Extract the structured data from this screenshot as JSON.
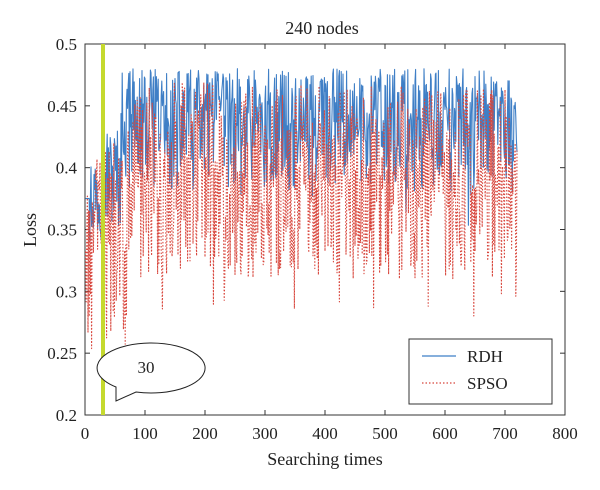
{
  "chart_data": {
    "type": "line",
    "title": "240 nodes",
    "xlabel": "Searching times",
    "ylabel": "Loss",
    "xlim": [
      0,
      800
    ],
    "ylim": [
      0.2,
      0.5
    ],
    "xticks": [
      "0",
      "100",
      "200",
      "300",
      "400",
      "500",
      "600",
      "700",
      "800"
    ],
    "yticks": [
      "0.2",
      "0.25",
      "0.3",
      "0.35",
      "0.4",
      "0.45",
      "0.5"
    ],
    "grid": false,
    "legend_position": "bottom-right",
    "series": [
      {
        "name": "RDH",
        "style": "solid",
        "color": "#3f7fc6",
        "n_points": 720,
        "approx_range": [
          0.25,
          0.485
        ],
        "stable_band": [
          0.38,
          0.48
        ]
      },
      {
        "name": "SPSO",
        "style": "dotted",
        "color": "#d8463c",
        "n_points": 720,
        "approx_range": [
          0.232,
          0.472
        ],
        "stable_band": [
          0.31,
          0.47
        ]
      }
    ],
    "vertical_marker": {
      "x": 30,
      "color": "#c5d92e"
    },
    "annotation": {
      "text": "30",
      "target_x": 30
    }
  }
}
